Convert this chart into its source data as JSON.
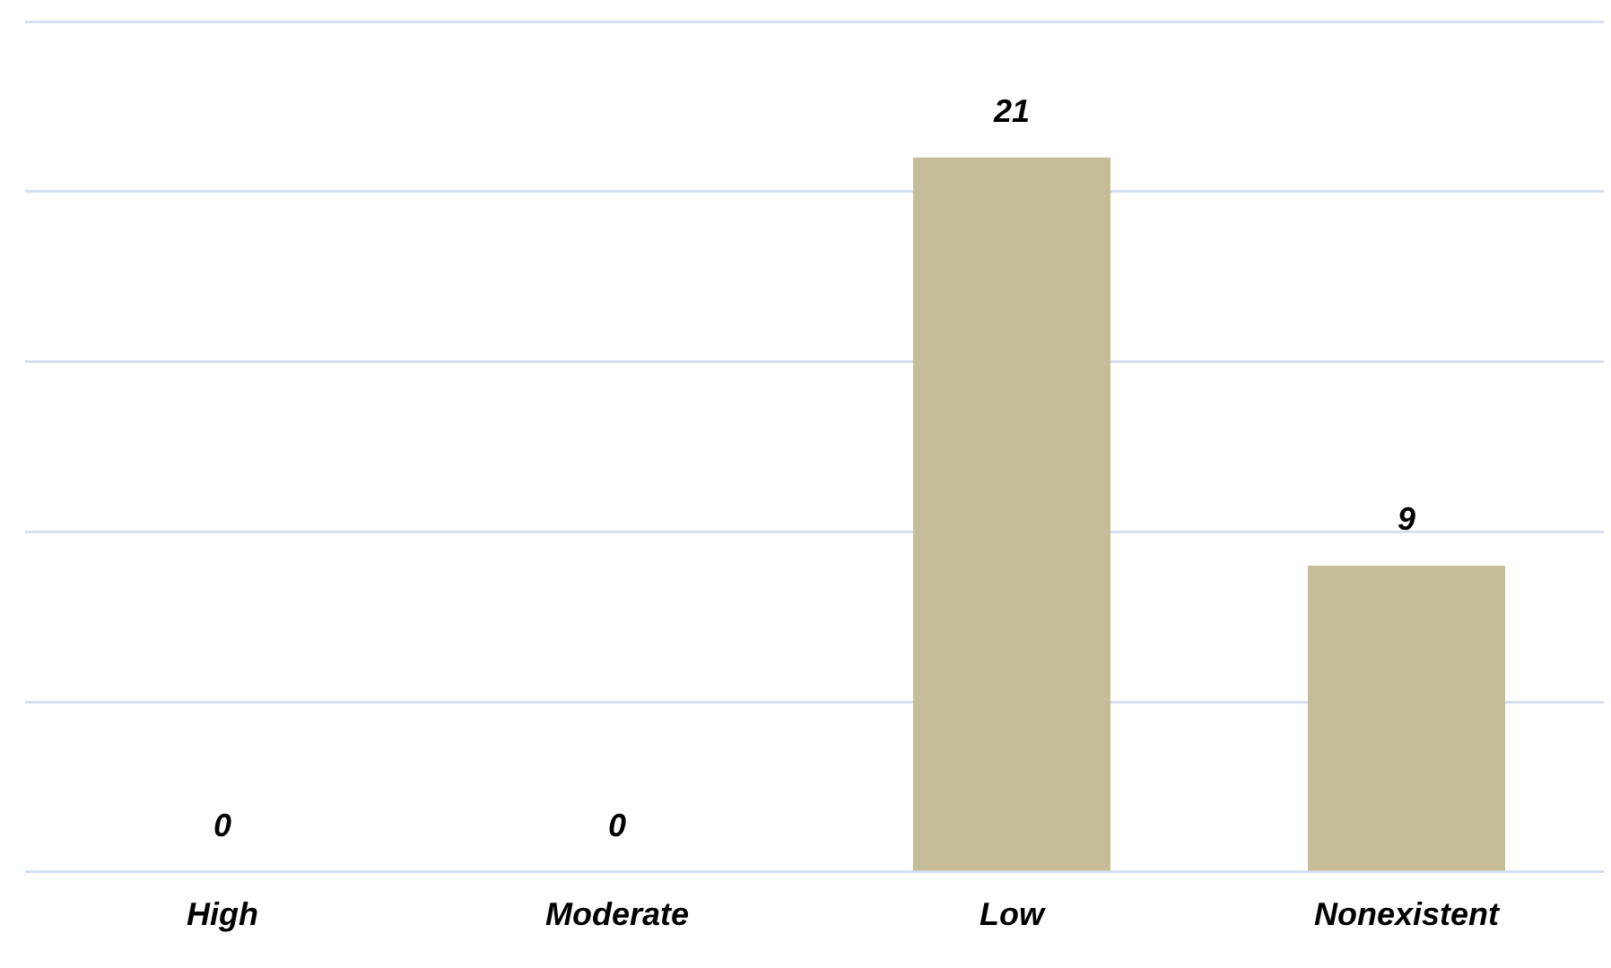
{
  "chart_data": {
    "type": "bar",
    "categories": [
      "High",
      "Moderate",
      "Low",
      "Nonexistent"
    ],
    "values": [
      0,
      0,
      21,
      9
    ],
    "color": "#c4bd97",
    "ylim": [
      0,
      25
    ],
    "yticks": [
      {
        "value": 0,
        "label": null
      },
      {
        "value": 5,
        "label": null
      },
      {
        "value": 10,
        "label": null
      },
      {
        "value": 15,
        "label": null
      },
      {
        "value": 20,
        "label": null
      },
      {
        "value": 25,
        "label": null
      }
    ],
    "grid": "y",
    "data_labels": true
  }
}
